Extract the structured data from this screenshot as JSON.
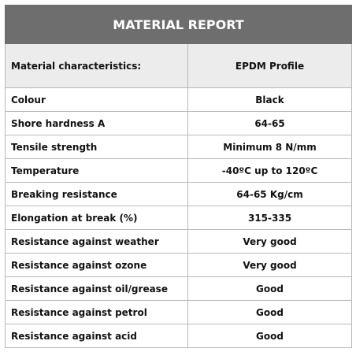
{
  "header": {
    "title": "MATERIAL REPORT"
  },
  "table": {
    "columns": [
      "Material characteristics:",
      "EPDM Profile"
    ],
    "rows": [
      [
        "Colour",
        "Black"
      ],
      [
        "Shore hardness A",
        "64-65"
      ],
      [
        "Tensile strength",
        "Minimum 8 N/mm"
      ],
      [
        "Temperature",
        "-40ºC up to 120ºC"
      ],
      [
        "Breaking resistance",
        "64-65 Kg/cm"
      ],
      [
        "Elongation at break (%)",
        "315-335"
      ],
      [
        "Resistance against weather",
        "Very good"
      ],
      [
        "Resistance against ozone",
        "Very good"
      ],
      [
        "Resistance against oil/grease",
        "Good"
      ],
      [
        "Resistance against petrol",
        "Good"
      ],
      [
        "Resistance against acid",
        "Good"
      ]
    ]
  }
}
